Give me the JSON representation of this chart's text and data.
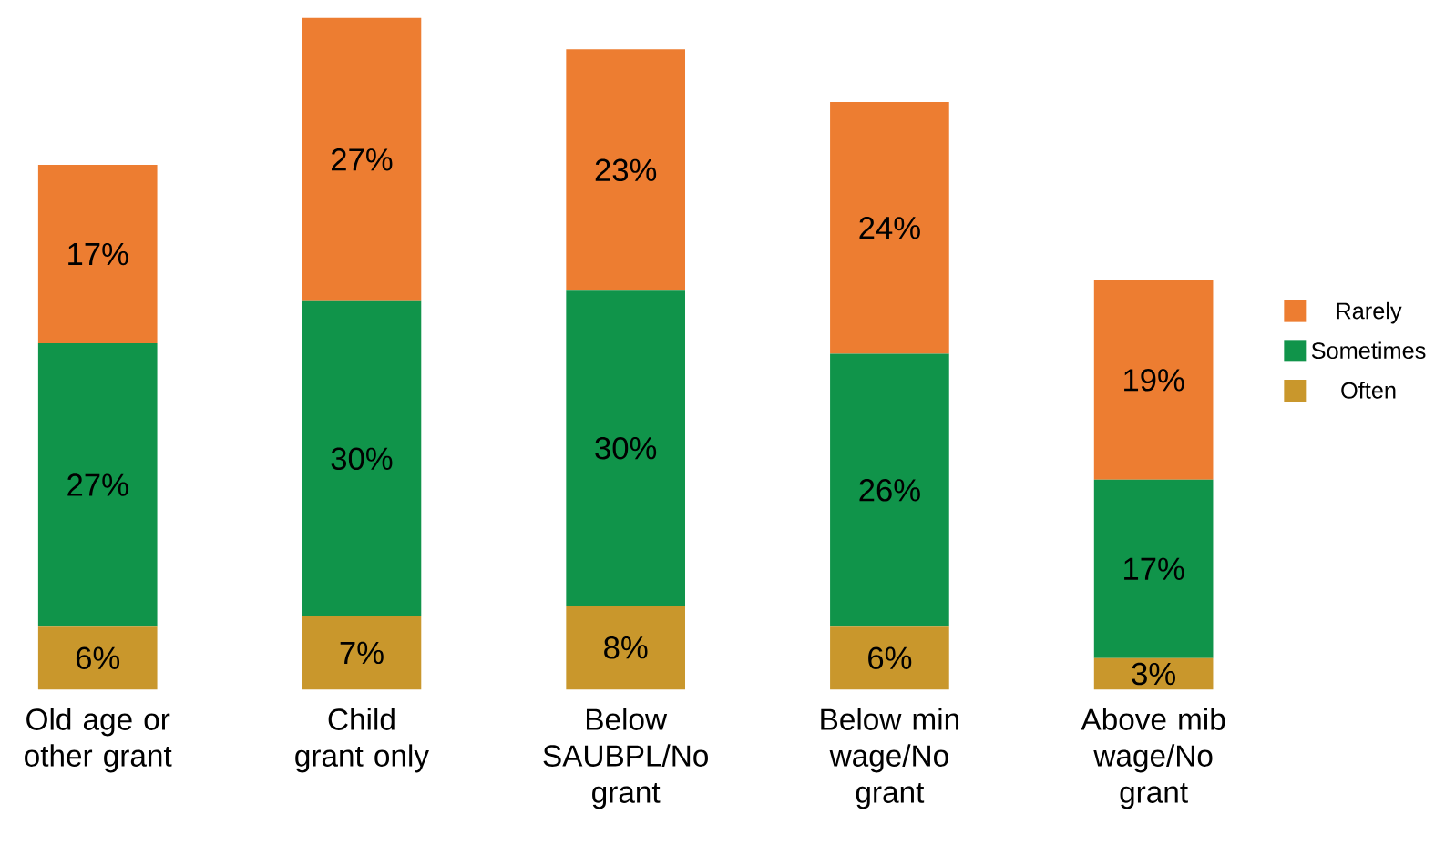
{
  "chart_data": {
    "type": "bar",
    "stacked": true,
    "legend": "right",
    "categories": [
      "Old age or other grant",
      "Child grant only",
      "Below SAUBPL/No grant",
      "Below min wage/No grant",
      "Above mib wage/No grant"
    ],
    "series": [
      {
        "name": "Often",
        "color": "#c9972c",
        "values": [
          6,
          7,
          8,
          6,
          3
        ],
        "value_labels": [
          "6%",
          "7%",
          "8%",
          "6%",
          "3%"
        ]
      },
      {
        "name": "Sometimes",
        "color": "#10944a",
        "values": [
          27,
          30,
          30,
          26,
          17
        ],
        "value_labels": [
          "27%",
          "30%",
          "30%",
          "26%",
          "17%"
        ]
      },
      {
        "name": "Rarely",
        "color": "#ed7d31",
        "values": [
          17,
          27,
          23,
          24,
          19
        ],
        "value_labels": [
          "17%",
          "27%",
          "23%",
          "24%",
          "19%"
        ]
      }
    ]
  }
}
